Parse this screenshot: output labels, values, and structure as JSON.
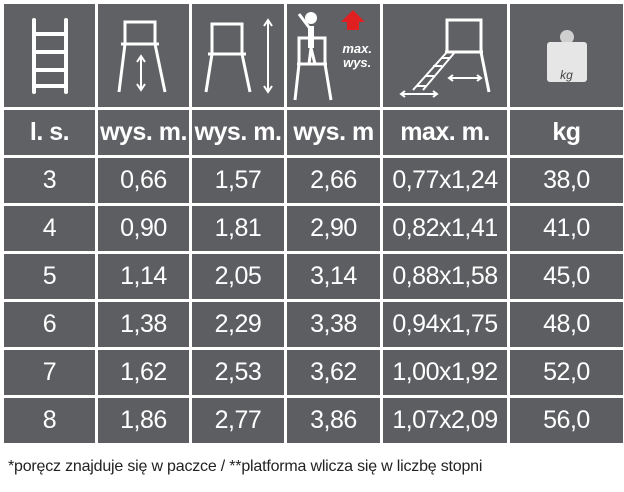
{
  "icons": [
    {
      "name": "ladder-icon"
    },
    {
      "name": "step-height-icon"
    },
    {
      "name": "ladder-height-icon"
    },
    {
      "name": "reach-height-icon",
      "label": "max.\nwys."
    },
    {
      "name": "platform-size-icon"
    },
    {
      "name": "weight-icon",
      "label": "kg"
    }
  ],
  "headers": [
    "l. s.",
    "wys. m.",
    "wys. m.",
    "wys. m",
    "max. m.",
    "kg"
  ],
  "rows": [
    [
      "3",
      "0,66",
      "1,57",
      "2,66",
      "0,77x1,24",
      "38,0"
    ],
    [
      "4",
      "0,90",
      "1,81",
      "2,90",
      "0,82x1,41",
      "41,0"
    ],
    [
      "5",
      "1,14",
      "2,05",
      "3,14",
      "0,88x1,58",
      "45,0"
    ],
    [
      "6",
      "1,38",
      "2,29",
      "3,38",
      "0,94x1,75",
      "48,0"
    ],
    [
      "7",
      "1,62",
      "2,53",
      "3,62",
      "1,00x1,92",
      "52,0"
    ],
    [
      "8",
      "1,86",
      "2,77",
      "3,86",
      "1,07x2,09",
      "56,0"
    ]
  ],
  "footnote": "*poręcz znajduje się w paczce / **platforma wlicza się w liczbę stopni",
  "colors": {
    "cell": "#5d5e61",
    "accent_arrow": "#e02020",
    "text": "#ffffff"
  }
}
